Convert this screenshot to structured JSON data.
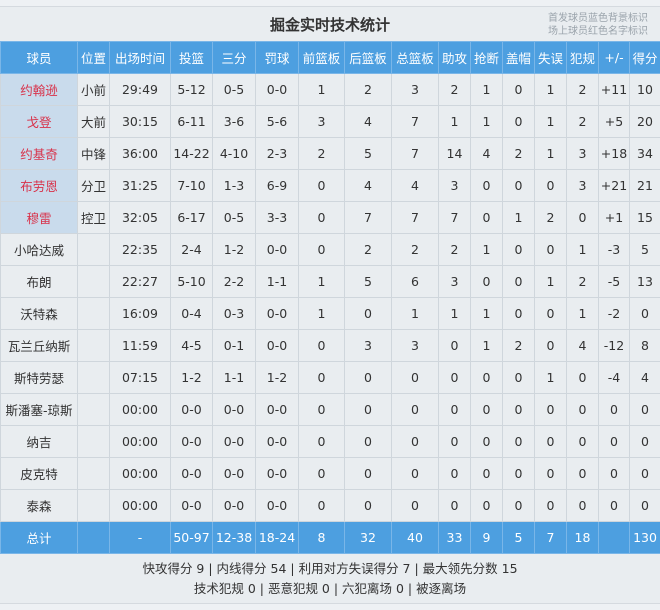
{
  "title": "掘金实时技术统计",
  "legend": [
    "首发球员蓝色背景标识",
    "场上球员红色名字标识"
  ],
  "colors": {
    "header": "#4d9fe0",
    "starter_bg": "#c9dbec",
    "on_court_name": "#d8324a"
  },
  "columns": [
    "球员",
    "位置",
    "出场时间",
    "投篮",
    "三分",
    "罚球",
    "前篮板",
    "后篮板",
    "总篮板",
    "助攻",
    "抢断",
    "盖帽",
    "失误",
    "犯规",
    "+/-",
    "得分"
  ],
  "players": [
    {
      "starter": true,
      "cells": [
        "约翰逊",
        "小前",
        "29:49",
        "5-12",
        "0-5",
        "0-0",
        "1",
        "2",
        "3",
        "2",
        "1",
        "0",
        "1",
        "2",
        "+11",
        "10"
      ]
    },
    {
      "starter": true,
      "cells": [
        "戈登",
        "大前",
        "30:15",
        "6-11",
        "3-6",
        "5-6",
        "3",
        "4",
        "7",
        "1",
        "1",
        "0",
        "1",
        "2",
        "+5",
        "20"
      ]
    },
    {
      "starter": true,
      "cells": [
        "约基奇",
        "中锋",
        "36:00",
        "14-22",
        "4-10",
        "2-3",
        "2",
        "5",
        "7",
        "14",
        "4",
        "2",
        "1",
        "3",
        "+18",
        "34"
      ]
    },
    {
      "starter": true,
      "cells": [
        "布劳恩",
        "分卫",
        "31:25",
        "7-10",
        "1-3",
        "6-9",
        "0",
        "4",
        "4",
        "3",
        "0",
        "0",
        "0",
        "3",
        "+21",
        "21"
      ]
    },
    {
      "starter": true,
      "cells": [
        "穆雷",
        "控卫",
        "32:05",
        "6-17",
        "0-5",
        "3-3",
        "0",
        "7",
        "7",
        "7",
        "0",
        "1",
        "2",
        "0",
        "+1",
        "15"
      ]
    },
    {
      "starter": false,
      "cells": [
        "小哈达威",
        "",
        "22:35",
        "2-4",
        "1-2",
        "0-0",
        "0",
        "2",
        "2",
        "2",
        "1",
        "0",
        "0",
        "1",
        "-3",
        "5"
      ]
    },
    {
      "starter": false,
      "cells": [
        "布朗",
        "",
        "22:27",
        "5-10",
        "2-2",
        "1-1",
        "1",
        "5",
        "6",
        "3",
        "0",
        "0",
        "1",
        "2",
        "-5",
        "13"
      ]
    },
    {
      "starter": false,
      "cells": [
        "沃特森",
        "",
        "16:09",
        "0-4",
        "0-3",
        "0-0",
        "1",
        "0",
        "1",
        "1",
        "1",
        "0",
        "0",
        "1",
        "-2",
        "0"
      ]
    },
    {
      "starter": false,
      "cells": [
        "瓦兰丘纳斯",
        "",
        "11:59",
        "4-5",
        "0-1",
        "0-0",
        "0",
        "3",
        "3",
        "0",
        "1",
        "2",
        "0",
        "4",
        "-12",
        "8"
      ]
    },
    {
      "starter": false,
      "cells": [
        "斯特劳瑟",
        "",
        "07:15",
        "1-2",
        "1-1",
        "1-2",
        "0",
        "0",
        "0",
        "0",
        "0",
        "0",
        "1",
        "0",
        "-4",
        "4"
      ]
    },
    {
      "starter": false,
      "cells": [
        "斯潘塞-琼斯",
        "",
        "00:00",
        "0-0",
        "0-0",
        "0-0",
        "0",
        "0",
        "0",
        "0",
        "0",
        "0",
        "0",
        "0",
        "0",
        "0"
      ]
    },
    {
      "starter": false,
      "cells": [
        "纳吉",
        "",
        "00:00",
        "0-0",
        "0-0",
        "0-0",
        "0",
        "0",
        "0",
        "0",
        "0",
        "0",
        "0",
        "0",
        "0",
        "0"
      ]
    },
    {
      "starter": false,
      "cells": [
        "皮克特",
        "",
        "00:00",
        "0-0",
        "0-0",
        "0-0",
        "0",
        "0",
        "0",
        "0",
        "0",
        "0",
        "0",
        "0",
        "0",
        "0"
      ]
    },
    {
      "starter": false,
      "cells": [
        "泰森",
        "",
        "00:00",
        "0-0",
        "0-0",
        "0-0",
        "0",
        "0",
        "0",
        "0",
        "0",
        "0",
        "0",
        "0",
        "0",
        "0"
      ]
    }
  ],
  "total": [
    "总计",
    "",
    "-",
    "50-97",
    "12-38",
    "18-24",
    "8",
    "32",
    "40",
    "33",
    "9",
    "5",
    "7",
    "18",
    "",
    "130"
  ],
  "footer": [
    "快攻得分 9 | 内线得分 54 | 利用对方失误得分 7 | 最大领先分数 15",
    "技术犯规 0 | 恶意犯规 0 | 六犯离场 0 | 被逐离场"
  ]
}
